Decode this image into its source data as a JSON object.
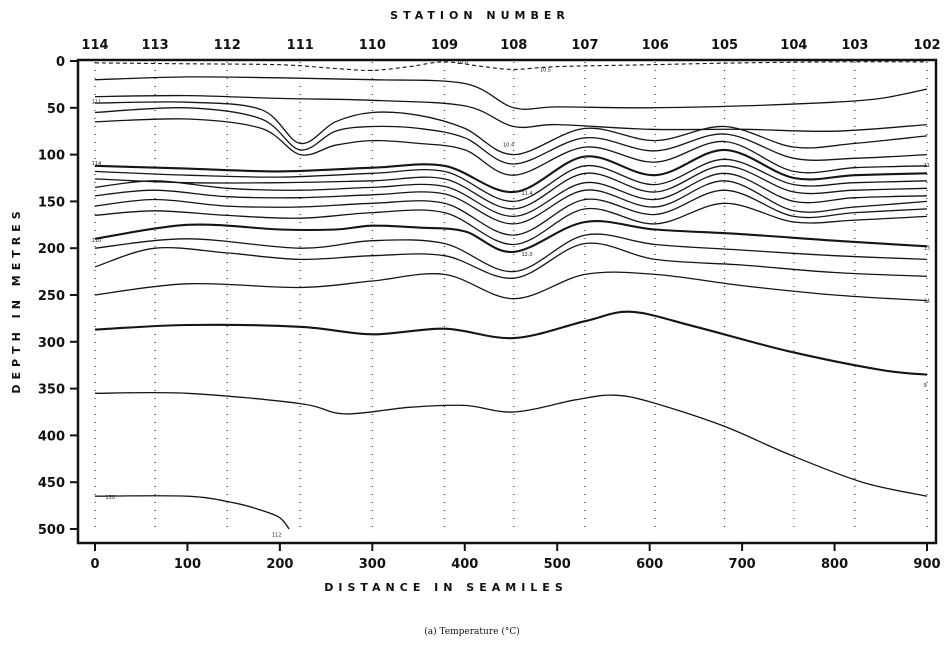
{
  "chart_data": {
    "type": "contour",
    "top_axis_title": "STATION NUMBER",
    "xlabel": "DISTANCE IN SEAMILES",
    "ylabel": "DEPTH IN METRES",
    "caption": "(a) Temperature (°C)",
    "xlim": [
      -10,
      905
    ],
    "ylim": [
      515,
      0
    ],
    "x_ticks": [
      0,
      100,
      200,
      300,
      400,
      500,
      600,
      700,
      800,
      900
    ],
    "y_ticks": [
      0,
      50,
      100,
      150,
      200,
      250,
      300,
      350,
      400,
      450,
      500
    ],
    "stations": [
      {
        "label": "114",
        "x": 0
      },
      {
        "label": "113",
        "x": 65
      },
      {
        "label": "112",
        "x": 143
      },
      {
        "label": "111",
        "x": 222
      },
      {
        "label": "110",
        "x": 300
      },
      {
        "label": "109",
        "x": 378
      },
      {
        "label": "108",
        "x": 453
      },
      {
        "label": "107",
        "x": 530
      },
      {
        "label": "106",
        "x": 606
      },
      {
        "label": "105",
        "x": 681
      },
      {
        "label": "104",
        "x": 756
      },
      {
        "label": "103",
        "x": 822
      },
      {
        "label": "102",
        "x": 900
      }
    ],
    "isotherms": [
      {
        "style": "dashed",
        "points": [
          [
            0,
            2
          ],
          [
            100,
            3
          ],
          [
            200,
            4
          ],
          [
            260,
            8
          ],
          [
            300,
            10
          ],
          [
            340,
            6
          ],
          [
            378,
            1
          ],
          [
            420,
            6
          ],
          [
            453,
            9
          ],
          [
            500,
            6
          ],
          [
            600,
            4
          ],
          [
            700,
            2
          ],
          [
            800,
            1
          ],
          [
            900,
            1
          ]
        ]
      },
      {
        "points": [
          [
            0,
            20
          ],
          [
            100,
            17
          ],
          [
            200,
            18
          ],
          [
            300,
            20
          ],
          [
            400,
            24
          ],
          [
            453,
            50
          ],
          [
            500,
            49
          ],
          [
            600,
            50
          ],
          [
            700,
            48
          ],
          [
            800,
            44
          ],
          [
            850,
            40
          ],
          [
            900,
            30
          ]
        ]
      },
      {
        "points": [
          [
            0,
            38
          ],
          [
            100,
            37
          ],
          [
            200,
            40
          ],
          [
            300,
            42
          ],
          [
            400,
            48
          ],
          [
            453,
            70
          ],
          [
            500,
            68
          ],
          [
            600,
            73
          ],
          [
            700,
            73
          ],
          [
            800,
            75
          ],
          [
            900,
            68
          ]
        ]
      },
      {
        "points": [
          [
            0,
            45
          ],
          [
            100,
            44
          ],
          [
            180,
            52
          ],
          [
            222,
            88
          ],
          [
            260,
            65
          ],
          [
            300,
            55
          ],
          [
            350,
            58
          ],
          [
            400,
            72
          ],
          [
            453,
            100
          ],
          [
            530,
            72
          ],
          [
            606,
            85
          ],
          [
            681,
            70
          ],
          [
            756,
            92
          ],
          [
            822,
            88
          ],
          [
            900,
            80
          ]
        ]
      },
      {
        "points": [
          [
            0,
            55
          ],
          [
            100,
            50
          ],
          [
            180,
            62
          ],
          [
            222,
            95
          ],
          [
            260,
            75
          ],
          [
            300,
            70
          ],
          [
            350,
            72
          ],
          [
            400,
            82
          ],
          [
            453,
            110
          ],
          [
            530,
            82
          ],
          [
            606,
            96
          ],
          [
            681,
            78
          ],
          [
            756,
            104
          ],
          [
            822,
            104
          ],
          [
            900,
            100
          ]
        ]
      },
      {
        "points": [
          [
            0,
            65
          ],
          [
            100,
            62
          ],
          [
            180,
            72
          ],
          [
            222,
            100
          ],
          [
            260,
            90
          ],
          [
            300,
            85
          ],
          [
            350,
            88
          ],
          [
            400,
            95
          ],
          [
            453,
            122
          ],
          [
            530,
            92
          ],
          [
            606,
            108
          ],
          [
            681,
            86
          ],
          [
            756,
            118
          ],
          [
            822,
            114
          ],
          [
            900,
            112
          ]
        ]
      },
      {
        "heavy": true,
        "points": [
          [
            0,
            112
          ],
          [
            100,
            115
          ],
          [
            200,
            118
          ],
          [
            300,
            114
          ],
          [
            378,
            112
          ],
          [
            453,
            140
          ],
          [
            530,
            102
          ],
          [
            606,
            122
          ],
          [
            681,
            95
          ],
          [
            756,
            125
          ],
          [
            822,
            122
          ],
          [
            900,
            120
          ]
        ]
      },
      {
        "points": [
          [
            0,
            118
          ],
          [
            100,
            122
          ],
          [
            200,
            124
          ],
          [
            300,
            120
          ],
          [
            378,
            118
          ],
          [
            453,
            150
          ],
          [
            530,
            112
          ],
          [
            606,
            132
          ],
          [
            681,
            105
          ],
          [
            756,
            132
          ],
          [
            822,
            130
          ],
          [
            900,
            128
          ]
        ]
      },
      {
        "points": [
          [
            0,
            126
          ],
          [
            100,
            130
          ],
          [
            200,
            130
          ],
          [
            300,
            128
          ],
          [
            378,
            126
          ],
          [
            453,
            158
          ],
          [
            530,
            120
          ],
          [
            606,
            140
          ],
          [
            681,
            112
          ],
          [
            756,
            140
          ],
          [
            822,
            138
          ],
          [
            900,
            136
          ]
        ]
      },
      {
        "points": [
          [
            0,
            135
          ],
          [
            65,
            128
          ],
          [
            143,
            136
          ],
          [
            222,
            138
          ],
          [
            300,
            135
          ],
          [
            378,
            134
          ],
          [
            453,
            166
          ],
          [
            530,
            130
          ],
          [
            606,
            148
          ],
          [
            681,
            120
          ],
          [
            756,
            150
          ],
          [
            822,
            146
          ],
          [
            900,
            144
          ]
        ]
      },
      {
        "points": [
          [
            0,
            144
          ],
          [
            65,
            138
          ],
          [
            143,
            145
          ],
          [
            222,
            146
          ],
          [
            300,
            143
          ],
          [
            378,
            142
          ],
          [
            453,
            174
          ],
          [
            530,
            138
          ],
          [
            606,
            156
          ],
          [
            681,
            128
          ],
          [
            756,
            160
          ],
          [
            822,
            156
          ],
          [
            900,
            150
          ]
        ]
      },
      {
        "points": [
          [
            0,
            155
          ],
          [
            65,
            148
          ],
          [
            143,
            155
          ],
          [
            222,
            156
          ],
          [
            300,
            152
          ],
          [
            378,
            152
          ],
          [
            453,
            186
          ],
          [
            530,
            148
          ],
          [
            606,
            164
          ],
          [
            681,
            138
          ],
          [
            756,
            166
          ],
          [
            822,
            162
          ],
          [
            900,
            158
          ]
        ]
      },
      {
        "points": [
          [
            0,
            165
          ],
          [
            65,
            160
          ],
          [
            143,
            165
          ],
          [
            222,
            168
          ],
          [
            300,
            162
          ],
          [
            378,
            162
          ],
          [
            453,
            196
          ],
          [
            530,
            158
          ],
          [
            606,
            174
          ],
          [
            681,
            152
          ],
          [
            756,
            172
          ],
          [
            822,
            170
          ],
          [
            900,
            166
          ]
        ]
      },
      {
        "heavy": true,
        "points": [
          [
            0,
            190
          ],
          [
            100,
            175
          ],
          [
            200,
            180
          ],
          [
            260,
            180
          ],
          [
            300,
            176
          ],
          [
            350,
            178
          ],
          [
            400,
            182
          ],
          [
            453,
            204
          ],
          [
            530,
            172
          ],
          [
            606,
            180
          ],
          [
            700,
            185
          ],
          [
            800,
            192
          ],
          [
            900,
            198
          ]
        ]
      },
      {
        "points": [
          [
            0,
            200
          ],
          [
            100,
            190
          ],
          [
            222,
            200
          ],
          [
            300,
            192
          ],
          [
            378,
            195
          ],
          [
            453,
            225
          ],
          [
            530,
            186
          ],
          [
            606,
            196
          ],
          [
            700,
            202
          ],
          [
            800,
            208
          ],
          [
            900,
            212
          ]
        ]
      },
      {
        "points": [
          [
            0,
            220
          ],
          [
            65,
            200
          ],
          [
            143,
            205
          ],
          [
            222,
            212
          ],
          [
            300,
            208
          ],
          [
            378,
            208
          ],
          [
            453,
            232
          ],
          [
            530,
            195
          ],
          [
            606,
            212
          ],
          [
            700,
            218
          ],
          [
            800,
            226
          ],
          [
            900,
            230
          ]
        ]
      },
      {
        "points": [
          [
            0,
            250
          ],
          [
            100,
            238
          ],
          [
            222,
            242
          ],
          [
            300,
            235
          ],
          [
            378,
            228
          ],
          [
            453,
            254
          ],
          [
            530,
            228
          ],
          [
            606,
            228
          ],
          [
            700,
            240
          ],
          [
            800,
            250
          ],
          [
            900,
            256
          ]
        ]
      },
      {
        "heavy": true,
        "points": [
          [
            0,
            287
          ],
          [
            100,
            282
          ],
          [
            222,
            284
          ],
          [
            300,
            292
          ],
          [
            378,
            286
          ],
          [
            453,
            296
          ],
          [
            530,
            278
          ],
          [
            580,
            268
          ],
          [
            650,
            284
          ],
          [
            750,
            310
          ],
          [
            850,
            330
          ],
          [
            900,
            335
          ]
        ]
      },
      {
        "points": [
          [
            0,
            355
          ],
          [
            100,
            355
          ],
          [
            222,
            366
          ],
          [
            270,
            377
          ],
          [
            340,
            370
          ],
          [
            400,
            368
          ],
          [
            453,
            375
          ],
          [
            520,
            362
          ],
          [
            560,
            357
          ],
          [
            600,
            364
          ],
          [
            680,
            390
          ],
          [
            750,
            420
          ],
          [
            830,
            450
          ],
          [
            900,
            465
          ]
        ]
      },
      {
        "points": [
          [
            0,
            465
          ],
          [
            100,
            465
          ],
          [
            150,
            472
          ],
          [
            180,
            480
          ],
          [
            200,
            488
          ],
          [
            210,
            500
          ]
        ]
      }
    ],
    "isotherm_labels": [
      "111",
      "114",
      "110",
      "130",
      "112",
      "11.4",
      "12.0",
      "10.0",
      "10.5",
      "10.4",
      "11",
      "13",
      "14",
      "9",
      "8",
      "6.0"
    ]
  }
}
